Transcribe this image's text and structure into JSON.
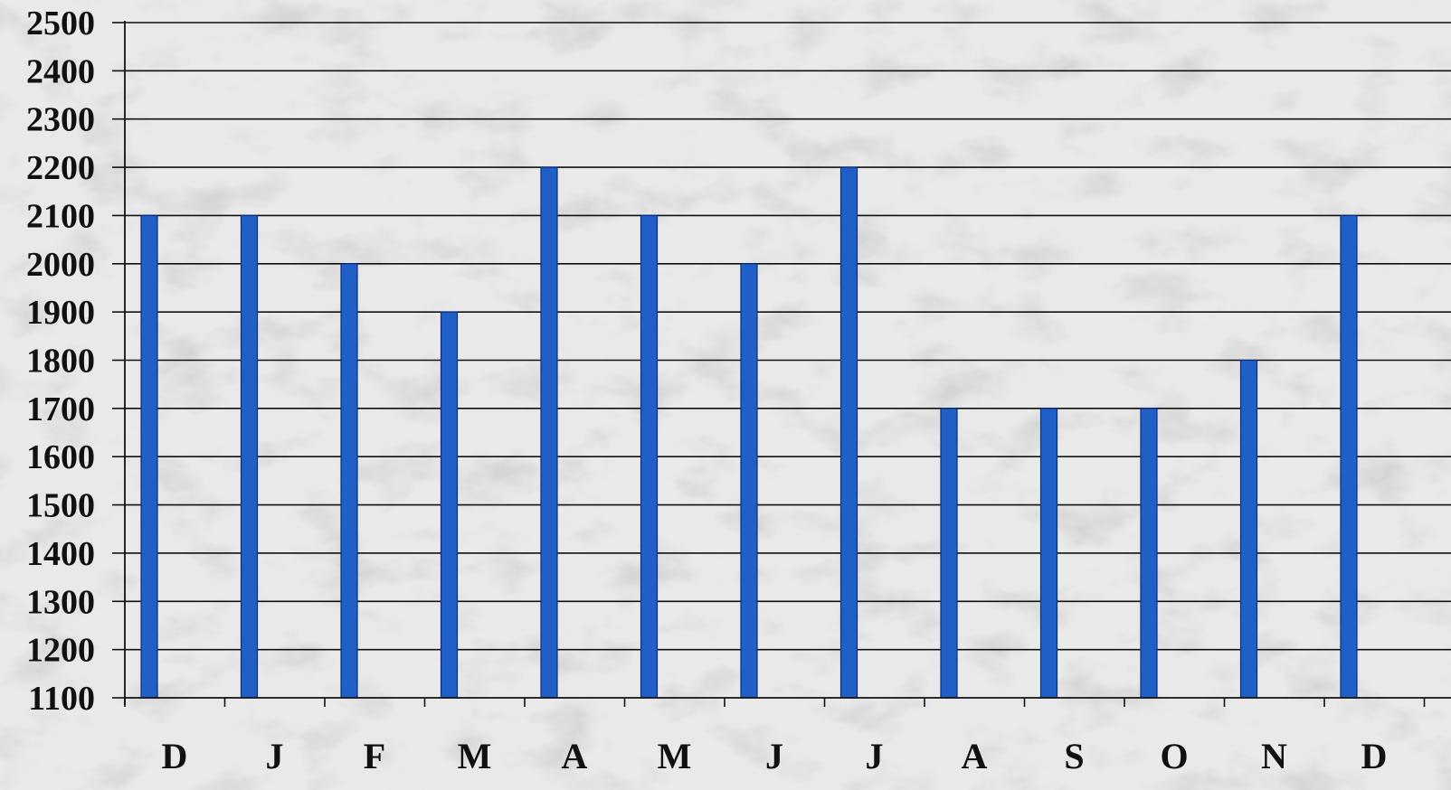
{
  "chart_data": {
    "type": "bar",
    "title": "",
    "xlabel": "",
    "ylabel": "",
    "categories": [
      "D",
      "J",
      "F",
      "M",
      "A",
      "M",
      "J",
      "J",
      "A",
      "S",
      "O",
      "N",
      "D"
    ],
    "values": [
      2100,
      2100,
      2000,
      1900,
      2200,
      2100,
      2000,
      2200,
      1700,
      1700,
      1700,
      1800,
      2100
    ],
    "ylim": [
      1100,
      2500
    ],
    "yticks": [
      1100,
      1200,
      1300,
      1400,
      1500,
      1600,
      1700,
      1800,
      1900,
      2000,
      2100,
      2200,
      2300,
      2400,
      2500
    ],
    "grid": true,
    "legend": "none",
    "colors": {
      "bar": "#1f5fc6",
      "bar_edge": "#0c2f80",
      "grid": "#111111",
      "background": "#e9e9e9",
      "texture": "#b8b8b8"
    }
  }
}
